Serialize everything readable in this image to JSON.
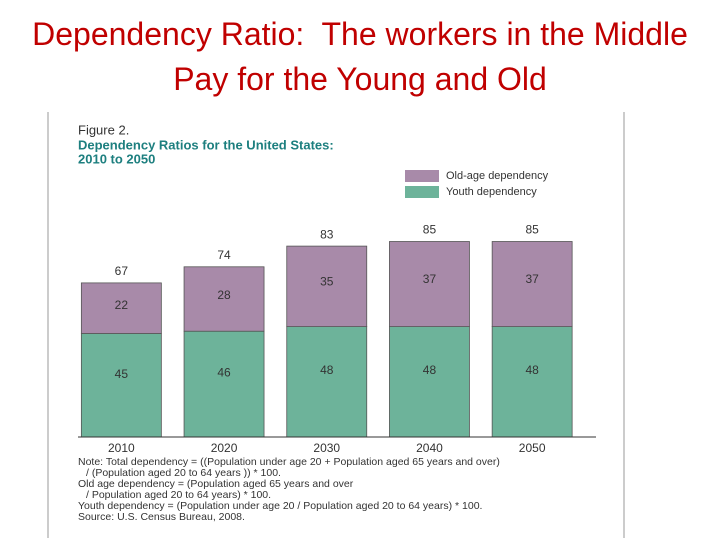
{
  "slide": {
    "title": "Dependency Ratio:  The workers in the Middle Pay for the Young and Old"
  },
  "chart_data": {
    "type": "stacked_bar",
    "figure_label": "Figure 2.",
    "title": "Dependency Ratios for the United States:",
    "subtitle": "2010 to 2050",
    "categories": [
      "2010",
      "2020",
      "2030",
      "2040",
      "2050"
    ],
    "series": [
      {
        "name": "Youth dependency",
        "color": "#6db39a",
        "values": [
          45,
          46,
          48,
          48,
          48
        ]
      },
      {
        "name": "Old-age dependency",
        "color": "#a88aa9",
        "values": [
          22,
          28,
          35,
          37,
          37
        ]
      }
    ],
    "totals": [
      67,
      74,
      83,
      85,
      85
    ],
    "notes": [
      "Note: Total dependency = ((Population under age 20 + Population aged 65 years and over)",
      "/ (Population aged 20 to 64 years )) * 100.",
      "Old age dependency = (Population aged 65 years and over",
      "/ Population aged 20 to 64 years) * 100.",
      "Youth dependency = (Population under age 20 / Population aged 20 to 64 years) * 100.",
      "Source: U.S. Census Bureau, 2008."
    ]
  }
}
